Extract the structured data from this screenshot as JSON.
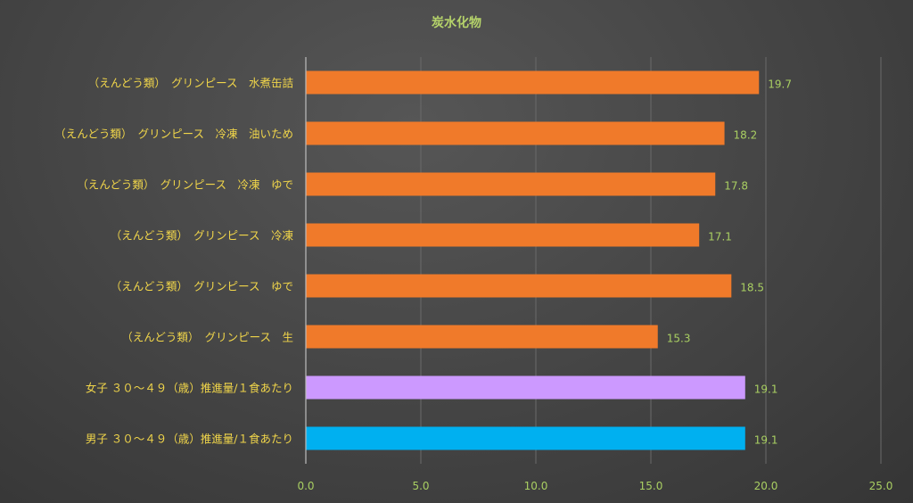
{
  "chart_data": {
    "type": "bar",
    "orientation": "horizontal",
    "title": "炭水化物",
    "categories": [
      "（えんどう類）　グリンピース　水煮缶詰",
      "（えんどう類）　グリンピース　冷凍　油いため",
      "（えんどう類）　グリンピース　冷凍　ゆで",
      "（えんどう類）　グリンピース　冷凍",
      "（えんどう類）　グリンピース　ゆで",
      "（えんどう類）　グリンピース　生",
      "女子 ３０～４９（歳）推進量/１食あたり",
      "男子 ３０～４９（歳）推進量/１食あたり"
    ],
    "values": [
      19.7,
      18.2,
      17.8,
      17.1,
      18.5,
      15.3,
      19.1,
      19.1
    ],
    "value_labels": [
      "19.7",
      "18.2",
      "17.8",
      "17.1",
      "18.5",
      "15.3",
      "19.1",
      "19.1"
    ],
    "bar_colors": [
      "#f07a2a",
      "#f07a2a",
      "#f07a2a",
      "#f07a2a",
      "#f07a2a",
      "#f07a2a",
      "#cc99ff",
      "#00b0f0"
    ],
    "xlim": [
      0,
      25
    ],
    "xticks": [
      "0.0",
      "5.0",
      "10.0",
      "15.0",
      "20.0",
      "25.0"
    ],
    "xtick_values": [
      0,
      5,
      10,
      15,
      20,
      25
    ],
    "grid": true,
    "legend": "none"
  }
}
